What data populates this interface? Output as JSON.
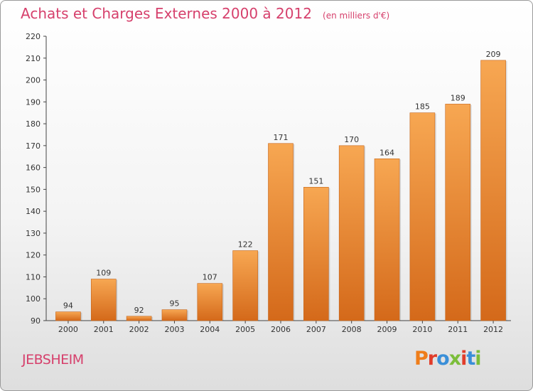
{
  "header": {
    "title": "Achats et Charges Externes 2000 à 2012",
    "unit": "(en milliers d'€)"
  },
  "footer": {
    "commune": "JEBSHEIM",
    "brand": "Proxiti"
  },
  "colors": {
    "title": "#d6406c",
    "bar_light": "#f6a34e",
    "bar_dark": "#d86f1c",
    "brand_letters": [
      "#ef7d1a",
      "#e13d2b",
      "#3a8fd8",
      "#7bbd3a",
      "#e13d2b",
      "#3a8fd8",
      "#7bbd3a"
    ]
  },
  "chart_data": {
    "type": "bar",
    "title": "Achats et Charges Externes 2000 à 2012",
    "subtitle": "(en milliers d'€)",
    "xlabel": "",
    "ylabel": "",
    "categories": [
      "2000",
      "2001",
      "2002",
      "2003",
      "2004",
      "2005",
      "2006",
      "2007",
      "2008",
      "2009",
      "2010",
      "2011",
      "2012"
    ],
    "values": [
      94,
      109,
      92,
      95,
      107,
      122,
      171,
      151,
      170,
      164,
      185,
      189,
      209
    ],
    "ylim": [
      90,
      220
    ],
    "yticks": [
      90,
      100,
      110,
      120,
      130,
      140,
      150,
      160,
      170,
      180,
      190,
      200,
      210,
      220
    ],
    "grid": false,
    "legend": "none"
  }
}
